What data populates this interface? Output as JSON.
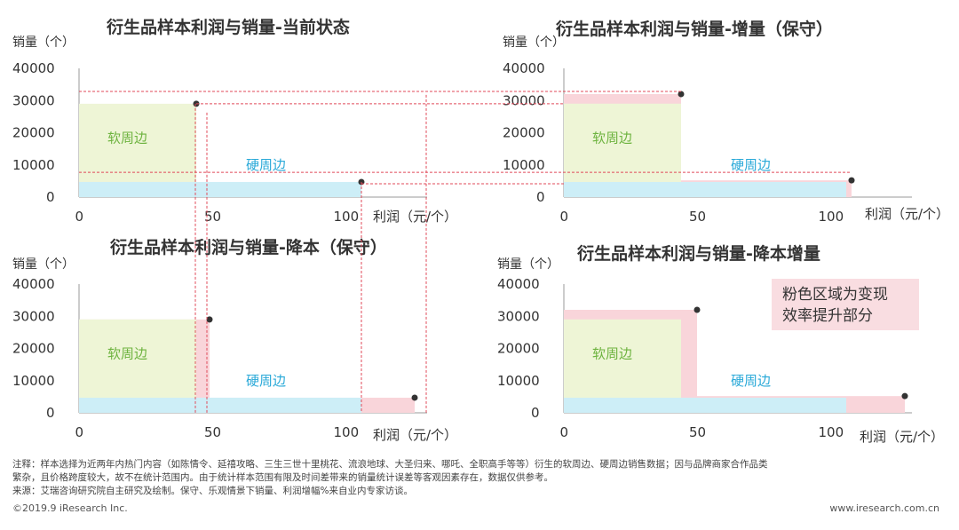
{
  "axis_common": {
    "y_label": "销量（个）",
    "x_label": "利润（元/个）",
    "y_ticks": [
      "40000",
      "30000",
      "20000",
      "10000",
      "0"
    ],
    "x_ticks": [
      "0",
      "50",
      "100"
    ],
    "ylim": [
      0,
      40000
    ],
    "xlim": [
      0,
      125
    ]
  },
  "labels": {
    "soft": "软周边",
    "hard": "硬周边"
  },
  "callout": {
    "line1": "粉色区域为变现",
    "line2": "效率提升部分"
  },
  "notes": {
    "line1": "注释：样本选择为近两年内热门内容（如陈情令、延禧攻略、三生三世十里桃花、流浪地球、大圣归来、哪吒、全职高手等等）衍生的软周边、硬周边销售数据；因与品牌商家合作品类",
    "line2": "繁杂，且价格跨度较大，故不在统计范围内。由于统计样本范围有限及时间差带来的销量统计误差等客观因素存在，数据仅供参考。",
    "line3": "来源：艾瑞咨询研究院自主研究及绘制。保守、乐观情景下销量、利润增幅%来自业内专家访谈。"
  },
  "footer": {
    "copyright": "©2019.9 iResearch Inc.",
    "website": "www.iresearch.com.cn"
  },
  "colors": {
    "soft_fill": "#eef5d6",
    "hard_fill": "#cdeef7",
    "pink_fill": "#f9d5da",
    "soft_text": "#6db33f",
    "hard_text": "#29a9d8",
    "guide_line": "#e04a5a",
    "axis": "#999999"
  },
  "chart_data": [
    {
      "type": "area",
      "title": "衍生品样本利润与销量-当前状态",
      "xlabel": "利润（元/个）",
      "ylabel": "销量（个）",
      "xlim": [
        0,
        125
      ],
      "ylim": [
        0,
        40000
      ],
      "series": [
        {
          "name": "软周边",
          "x": 44,
          "y": 29000
        },
        {
          "name": "硬周边",
          "x": 106,
          "y": 4700
        }
      ]
    },
    {
      "type": "area",
      "title": "衍生品样本利润与销量-增量（保守）",
      "xlabel": "利润（元/个）",
      "ylabel": "销量（个）",
      "xlim": [
        0,
        125
      ],
      "ylim": [
        0,
        40000
      ],
      "series": [
        {
          "name": "软周边",
          "x": 44,
          "y": 32000
        },
        {
          "name": "硬周边",
          "x": 108,
          "y": 5200
        }
      ]
    },
    {
      "type": "area",
      "title": "衍生品样本利润与销量-降本（保守）",
      "xlabel": "利润（元/个）",
      "ylabel": "销量（个）",
      "xlim": [
        0,
        125
      ],
      "ylim": [
        0,
        40000
      ],
      "series": [
        {
          "name": "软周边",
          "x": 49,
          "y": 29000
        },
        {
          "name": "硬周边",
          "x": 126,
          "y": 4700
        }
      ]
    },
    {
      "type": "area",
      "title": "衍生品样本利润与销量-降本增量",
      "xlabel": "利润（元/个）",
      "ylabel": "销量（个）",
      "xlim": [
        0,
        125
      ],
      "ylim": [
        0,
        40000
      ],
      "series": [
        {
          "name": "软周边",
          "x": 50,
          "y": 32000
        },
        {
          "name": "硬周边",
          "x": 128,
          "y": 5200
        }
      ]
    }
  ]
}
